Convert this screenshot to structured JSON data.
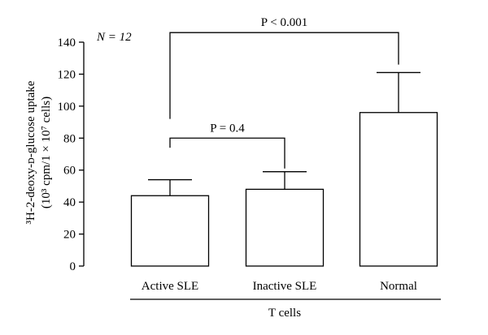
{
  "chart_data": {
    "type": "bar",
    "categories": [
      "Active SLE",
      "Inactive SLE",
      "Normal"
    ],
    "values": [
      44,
      48,
      96
    ],
    "error_upper": [
      54,
      59,
      121
    ],
    "ylim": [
      0,
      140
    ],
    "yticks": [
      0,
      20,
      40,
      60,
      80,
      100,
      120,
      140
    ],
    "ylabel_line1": "³H-2-deoxy-ᴅ-glucose uptake",
    "ylabel_line2": "(10³ cpm/1 × 10⁷ cells)",
    "group_label": "T cells",
    "sample_size_label": "N = 12",
    "annotations": [
      {
        "label": "P < 0.001",
        "from_index": 0,
        "to_index": 2,
        "bracket_y": 146,
        "left_leg_bottom": 92,
        "right_leg_bottom": 126
      },
      {
        "label": "P = 0.4",
        "from_index": 0,
        "to_index": 1,
        "bracket_y": 80,
        "left_leg_bottom": 74,
        "right_leg_bottom": 61
      }
    ]
  },
  "colors": {
    "bar_fill": "#ffffff",
    "stroke": "#000000",
    "text": "#000000"
  }
}
